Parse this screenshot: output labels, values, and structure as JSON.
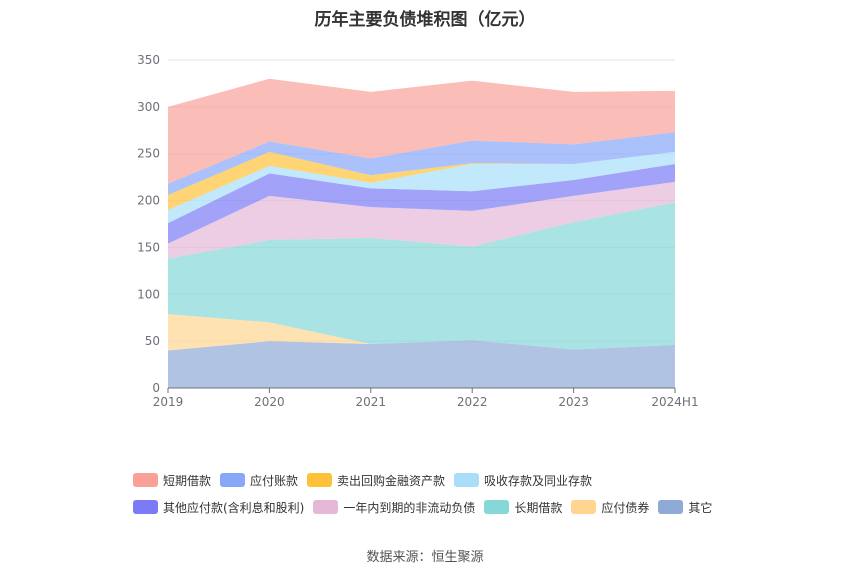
{
  "chart_data": {
    "type": "area",
    "stacked": true,
    "title": "历年主要负债堆积图（亿元）",
    "categories": [
      "2019",
      "2020",
      "2021",
      "2022",
      "2023",
      "2024H1"
    ],
    "ylim": [
      0,
      350
    ],
    "yticks": [
      0,
      50,
      100,
      150,
      200,
      250,
      300,
      350
    ],
    "grid": true,
    "legend_position": "bottom",
    "series": [
      {
        "name": "其它",
        "color": "#8eaad6",
        "values": [
          40,
          50,
          47,
          51,
          41,
          46
        ]
      },
      {
        "name": "应付债券",
        "color": "#ffd591",
        "values": [
          39,
          20,
          0,
          0,
          0,
          0
        ]
      },
      {
        "name": "长期借款",
        "color": "#86d7d7",
        "values": [
          59,
          88,
          113,
          100,
          136,
          152
        ]
      },
      {
        "name": "一年内到期的非流动负债",
        "color": "#e6b8d8",
        "values": [
          16,
          47,
          33,
          38,
          28,
          22
        ]
      },
      {
        "name": "其他应付款(含利息和股利)",
        "color": "#7b7cf5",
        "values": [
          22,
          24,
          20,
          21,
          17,
          19
        ]
      },
      {
        "name": "吸收存款及同业存款",
        "color": "#a8def9",
        "values": [
          14,
          8,
          6,
          29,
          17,
          13
        ]
      },
      {
        "name": "卖出回购金融资产款",
        "color": "#fec239",
        "values": [
          16,
          15,
          8,
          1,
          0,
          0
        ]
      },
      {
        "name": "应付账款",
        "color": "#87a7fb",
        "values": [
          12,
          11,
          18,
          24,
          21,
          21
        ]
      },
      {
        "name": "短期借款",
        "color": "#f9a198",
        "values": [
          82,
          67,
          71,
          64,
          56,
          44
        ]
      }
    ]
  },
  "legend": {
    "row1": [
      {
        "label": "短期借款",
        "color": "#f9a198"
      },
      {
        "label": "应付账款",
        "color": "#87a7fb"
      },
      {
        "label": "卖出回购金融资产款",
        "color": "#fec239"
      },
      {
        "label": "吸收存款及同业存款",
        "color": "#a8def9"
      }
    ],
    "row2": [
      {
        "label": "其他应付款(含利息和股利)",
        "color": "#7b7cf5"
      },
      {
        "label": "一年内到期的非流动负债",
        "color": "#e6b8d8"
      },
      {
        "label": "长期借款",
        "color": "#86d7d7"
      },
      {
        "label": "应付债券",
        "color": "#ffd591"
      },
      {
        "label": "其它",
        "color": "#8eaad6"
      }
    ]
  },
  "source": "数据来源：恒生聚源"
}
